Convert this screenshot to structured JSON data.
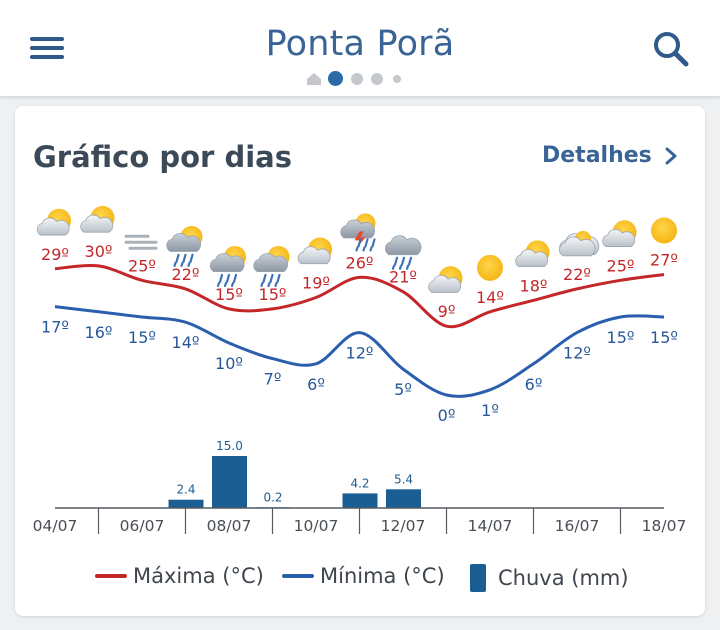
{
  "header": {
    "title": "Ponta Porã"
  },
  "card": {
    "title": "Gráfico por dias",
    "details_label": "Detalhes"
  },
  "colors": {
    "max": "#c3272a",
    "min": "#2b5fae",
    "rain": "#1b5e93",
    "accent": "#3a6396"
  },
  "chart_data": {
    "type": "line",
    "days": [
      {
        "max": 29,
        "min": 17,
        "icon": "sun-cloud-icon"
      },
      {
        "max": 30,
        "min": 16,
        "icon": "sun-cloud-icon"
      },
      {
        "max": 25,
        "min": 15,
        "icon": "fog-icon"
      },
      {
        "max": 22,
        "min": 14,
        "icon": "sun-cloud-rain-icon"
      },
      {
        "max": 15,
        "min": 10,
        "icon": "sun-cloud-rain-icon"
      },
      {
        "max": 15,
        "min": 7,
        "icon": "sun-cloud-rain-icon"
      },
      {
        "max": 19,
        "min": 6,
        "icon": "sun-cloud-icon"
      },
      {
        "max": 26,
        "min": 12,
        "icon": "storm-icon"
      },
      {
        "max": 21,
        "min": 5,
        "icon": "cloud-rain-icon"
      },
      {
        "max": 9,
        "min": 0,
        "icon": "sun-cloud-icon"
      },
      {
        "max": 14,
        "min": 1,
        "icon": "sun-icon"
      },
      {
        "max": 18,
        "min": 6,
        "icon": "sun-cloud-icon"
      },
      {
        "max": 22,
        "min": 12,
        "icon": "cloud-icon"
      },
      {
        "max": 25,
        "min": 15,
        "icon": "sun-cloud-icon"
      },
      {
        "max": 27,
        "min": 15,
        "icon": "sun-icon"
      }
    ],
    "rain": [
      {
        "day": 3,
        "value": 2.4,
        "label": "2.4"
      },
      {
        "day": 4,
        "value": 15.0,
        "label": "15.0"
      },
      {
        "day": 5,
        "value": 0.2,
        "label": "0.2"
      },
      {
        "day": 7,
        "value": 4.2,
        "label": "4.2"
      },
      {
        "day": 8,
        "value": 5.4,
        "label": "5.4"
      }
    ],
    "x_ticks": [
      "04/07",
      "06/07",
      "08/07",
      "10/07",
      "12/07",
      "14/07",
      "16/07",
      "18/07"
    ],
    "legend": [
      {
        "label": "Máxima (°C)",
        "kind": "line",
        "color": "#c3272a"
      },
      {
        "label": "Mínima (°C)",
        "kind": "line",
        "color": "#2b5fae"
      },
      {
        "label": "Chuva (mm)",
        "kind": "bar",
        "color": "#1b5e93"
      }
    ]
  }
}
